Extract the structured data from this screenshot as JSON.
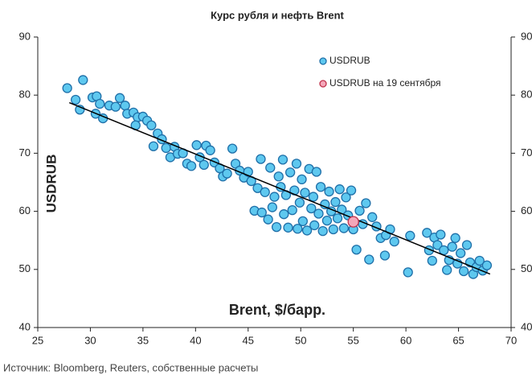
{
  "chart_data": {
    "type": "scatter",
    "title": "Курс рубля и нефть Brent",
    "x_label": "Brent, $/барр.",
    "y_label": "USDRUB",
    "source": "Источник: Bloomberg, Reuters, собственные расчеты",
    "xlim": [
      25,
      70
    ],
    "xticks": [
      25,
      30,
      35,
      40,
      45,
      50,
      55,
      60,
      65,
      70
    ],
    "ylim": [
      40,
      90
    ],
    "yticks": [
      40,
      50,
      60,
      70,
      80,
      90
    ],
    "y2lim": [
      40,
      90
    ],
    "y2ticks": [
      40,
      50,
      60,
      70,
      80,
      90
    ],
    "grid": false,
    "legend": "upper right",
    "trendline": {
      "x": [
        28,
        68
      ],
      "y": [
        78.7,
        49.2
      ],
      "color": "#000000"
    },
    "series": [
      {
        "name": "USDRUB",
        "color": "#5ec8ef",
        "edge": "#1f6fa8",
        "x": [
          27.8,
          29.3,
          28.6,
          29,
          30.2,
          30.6,
          30.9,
          30.5,
          31.2,
          31.8,
          32.4,
          32.8,
          33.3,
          33.5,
          34.1,
          34.5,
          34.3,
          35.0,
          35.4,
          35.8,
          36.0,
          36.4,
          36.8,
          37.2,
          37.6,
          38.0,
          38.3,
          38.8,
          39.2,
          39.6,
          40.1,
          40.4,
          40.8,
          41.0,
          41.4,
          41.8,
          42.3,
          42.6,
          43.0,
          43.5,
          43.8,
          44.2,
          44.6,
          45.0,
          45.3,
          45.6,
          45.9,
          46.2,
          46.3,
          46.6,
          46.9,
          47.1,
          47.3,
          47.5,
          47.7,
          47.9,
          48.1,
          48.3,
          48.4,
          48.6,
          48.8,
          49.0,
          49.2,
          49.4,
          49.6,
          49.7,
          49.9,
          50.1,
          50.2,
          50.4,
          50.6,
          50.8,
          51.0,
          51.2,
          51.3,
          51.5,
          51.7,
          51.9,
          52.1,
          52.3,
          52.5,
          52.7,
          52.9,
          53.1,
          53.3,
          53.5,
          53.7,
          53.9,
          54.1,
          54.3,
          54.5,
          54.8,
          55.0,
          55.3,
          55.6,
          55.9,
          56.2,
          56.5,
          56.8,
          57.2,
          57.6,
          58.0,
          58.1,
          58.5,
          58.9,
          60.2,
          60.4,
          62.0,
          62.2,
          62.5,
          62.7,
          63.0,
          63.3,
          63.6,
          63.9,
          64.1,
          64.4,
          64.7,
          64.9,
          65.2,
          65.5,
          65.8,
          66.1,
          66.4,
          66.7,
          67.0,
          67.3,
          67.7
        ],
        "values": [
          81.2,
          82.6,
          79.2,
          77.5,
          79.6,
          79.8,
          78.5,
          76.8,
          76.0,
          78.2,
          78.0,
          79.5,
          78.2,
          76.8,
          77.0,
          76.2,
          74.8,
          76.3,
          75.6,
          74.8,
          71.2,
          73.4,
          72.4,
          70.9,
          69.3,
          71.1,
          69.9,
          70.0,
          68.2,
          67.8,
          71.4,
          69.3,
          68.0,
          71.3,
          70.5,
          68.4,
          67.4,
          66.0,
          66.5,
          70.8,
          68.2,
          67.0,
          65.8,
          66.8,
          65.2,
          60.1,
          64.0,
          69.0,
          59.8,
          63.3,
          58.6,
          67.5,
          60.7,
          62.5,
          57.3,
          66.0,
          64.2,
          68.9,
          59.5,
          62.8,
          57.2,
          66.7,
          60.2,
          63.6,
          68.2,
          57.0,
          61.5,
          65.5,
          58.3,
          63.2,
          56.7,
          67.3,
          60.5,
          62.5,
          57.6,
          66.8,
          59.6,
          64.2,
          56.6,
          61.2,
          58.4,
          63.4,
          60.0,
          56.9,
          61.6,
          58.8,
          63.8,
          60.3,
          57.1,
          62.4,
          59.3,
          63.6,
          56.9,
          53.4,
          60.1,
          57.8,
          61.4,
          51.7,
          59.0,
          57.4,
          55.4,
          52.4,
          55.9,
          56.9,
          54.8,
          49.5,
          55.8,
          56.3,
          53.3,
          51.5,
          55.5,
          54.2,
          56.0,
          53.3,
          49.9,
          51.6,
          53.9,
          55.4,
          51.0,
          52.8,
          49.7,
          54.2,
          51.2,
          49.2,
          50.4,
          51.5,
          49.8,
          50.7
        ]
      },
      {
        "name": "USDRUB на 19 сентября",
        "color": "#f4a7b9",
        "edge": "#c0304a",
        "x": [
          55.0
        ],
        "values": [
          58.2
        ]
      }
    ]
  }
}
